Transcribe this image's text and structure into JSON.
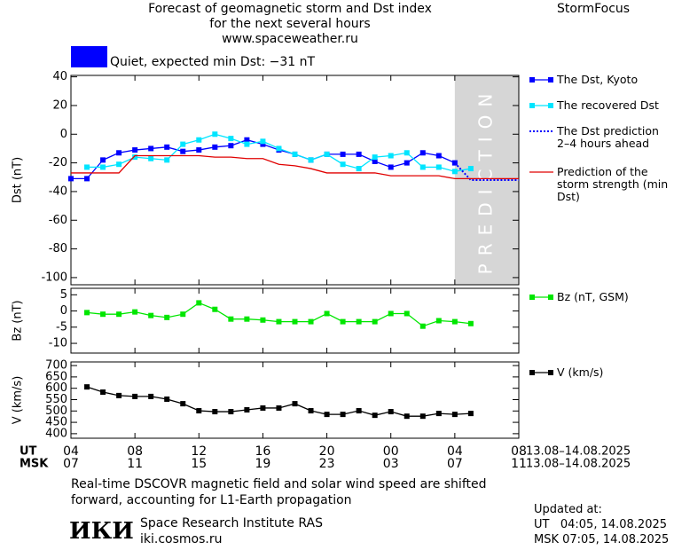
{
  "header": {
    "title_lines": [
      "Forecast of geomagnetic storm and Dst index",
      "for the next several hours",
      "www.spaceweather.ru"
    ],
    "brand": "StormFocus"
  },
  "status": {
    "text": "Quiet, expected min Dst: −31 nT",
    "color": "#0000ff"
  },
  "chart_data": [
    {
      "type": "line",
      "ylabel": "Dst (nT)",
      "ylim": [
        -105,
        41
      ],
      "yticks": [
        40,
        20,
        0,
        -20,
        -40,
        -60,
        -80,
        -100
      ],
      "prediction_region": [
        24,
        28
      ],
      "prediction_label": "PREDICTION",
      "prediction_color": "#d6d6d6",
      "series": [
        {
          "name": "The Dst, Kyoto",
          "color": "#0000ff",
          "marker": "square",
          "style": "solid",
          "x": [
            0,
            1,
            2,
            3,
            4,
            5,
            6,
            7,
            8,
            9,
            10,
            11,
            12,
            13,
            14,
            15,
            16,
            17,
            18,
            19,
            20,
            21,
            22,
            23,
            24
          ],
          "values": [
            -31,
            -31,
            -18,
            -13,
            -11,
            -10,
            -9,
            -12,
            -11,
            -9,
            -8,
            -4,
            -7,
            -11,
            -14,
            -18,
            -14,
            -14,
            -14,
            -19,
            -23,
            -20,
            -13,
            -15,
            -20
          ]
        },
        {
          "name": "The recovered Dst",
          "color": "#00e5ff",
          "marker": "square",
          "style": "solid",
          "x": [
            1,
            2,
            3,
            4,
            5,
            6,
            7,
            8,
            9,
            10,
            11,
            12,
            13,
            14,
            15,
            16,
            17,
            18,
            19,
            20,
            21,
            22,
            23,
            24,
            25
          ],
          "values": [
            -23,
            -23,
            -21,
            -16,
            -17,
            -18,
            -7,
            -4,
            0,
            -3,
            -7,
            -5,
            -10,
            -14,
            -18,
            -14,
            -21,
            -24,
            -16,
            -15,
            -13,
            -23,
            -23,
            -26,
            -24
          ]
        },
        {
          "name": "The Dst prediction 2–4 hours ahead",
          "color": "#0000ff",
          "marker": "none",
          "style": "dotted",
          "x": [
            24,
            25,
            26,
            27,
            28
          ],
          "values": [
            -20,
            -32,
            -32,
            -32,
            -32
          ]
        },
        {
          "name": "Prediction of the storm strength (min Dst)",
          "color": "#e00000",
          "marker": "none",
          "style": "solid",
          "x": [
            0,
            1,
            2,
            3,
            4,
            5,
            6,
            7,
            8,
            9,
            10,
            11,
            12,
            13,
            14,
            15,
            16,
            17,
            18,
            19,
            20,
            21,
            22,
            23,
            24,
            25,
            26,
            27,
            28
          ],
          "values": [
            -27,
            -27,
            -27,
            -27,
            -15,
            -15,
            -15,
            -15,
            -15,
            -16,
            -16,
            -17,
            -17,
            -21,
            -22,
            -24,
            -27,
            -27,
            -27,
            -27,
            -29,
            -29,
            -29,
            -29,
            -31,
            -31,
            -31,
            -31,
            -31
          ]
        }
      ]
    },
    {
      "type": "line",
      "ylabel": "Bz (nT)",
      "ylim": [
        -13,
        7
      ],
      "yticks": [
        5,
        0,
        -5,
        -10
      ],
      "series": [
        {
          "name": "Bz (nT, GSM)",
          "color": "#00e600",
          "marker": "square",
          "style": "solid",
          "x": [
            1,
            2,
            3,
            4,
            5,
            6,
            7,
            8,
            9,
            10,
            11,
            12,
            13,
            14,
            15,
            16,
            17,
            18,
            19,
            20,
            21,
            22,
            23,
            24,
            25
          ],
          "values": [
            -0.5,
            -1,
            -1,
            -0.3,
            -1.4,
            -2,
            -1,
            2.5,
            0.5,
            -2.5,
            -2.5,
            -2.8,
            -3.3,
            -3.3,
            -3.3,
            -0.8,
            -3.3,
            -3.3,
            -3.3,
            -0.8,
            -0.8,
            -4.7,
            -3,
            -3.3,
            -3.9
          ]
        }
      ]
    },
    {
      "type": "line",
      "ylabel": "V (km/s)",
      "ylim": [
        380,
        716
      ],
      "yticks": [
        700,
        650,
        600,
        550,
        500,
        450,
        400
      ],
      "xlim": [
        0,
        28
      ],
      "xticks": [
        {
          "value": 0,
          "label": "04"
        },
        {
          "value": 4,
          "label": "08"
        },
        {
          "value": 8,
          "label": "12"
        },
        {
          "value": 12,
          "label": "16"
        },
        {
          "value": 16,
          "label": "20"
        },
        {
          "value": 20,
          "label": "00"
        },
        {
          "value": 24,
          "label": "04"
        },
        {
          "value": 28,
          "label": "08"
        }
      ],
      "xticks_msk": [
        "07",
        "11",
        "15",
        "19",
        "23",
        "03",
        "07",
        "11"
      ],
      "x_label_ut": "UT",
      "x_label_msk": "MSK",
      "date_range_ut": "13.08–14.08.2025",
      "date_range_msk": "13.08–14.08.2025",
      "series": [
        {
          "name": "V (km/s)",
          "color": "#000000",
          "marker": "square",
          "style": "solid",
          "x": [
            1,
            2,
            3,
            4,
            5,
            6,
            7,
            8,
            9,
            10,
            11,
            12,
            13,
            14,
            15,
            16,
            17,
            18,
            19,
            20,
            21,
            22,
            23,
            24,
            25
          ],
          "values": [
            606,
            583,
            568,
            564,
            564,
            552,
            532,
            501,
            497,
            497,
            505,
            513,
            513,
            532,
            501,
            485,
            485,
            501,
            481,
            497,
            477,
            477,
            489,
            485,
            489
          ]
        }
      ]
    }
  ],
  "footer": {
    "note_lines": [
      "Real-time DSCOVR magnetic field and solar wind speed are shifted",
      "forward, accounting for L1-Earth propagation"
    ],
    "logo": "ИКИ",
    "org": "Space Research Institute RAS",
    "url": "iki.cosmos.ru",
    "updated_label": "Updated at:",
    "updated_ut": "UT   04:05, 14.08.2025",
    "updated_msk": "MSK 07:05, 14.08.2025"
  }
}
